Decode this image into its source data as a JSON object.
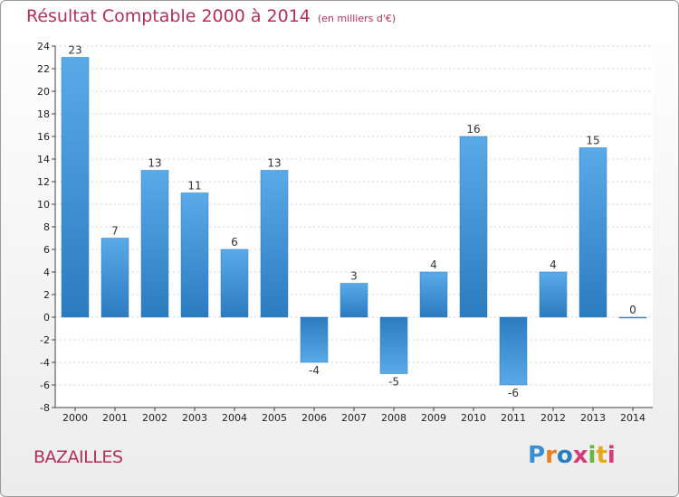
{
  "chart_data": {
    "type": "bar",
    "title": "Résultat Comptable 2000 à 2014",
    "unit": "(en milliers d'€)",
    "categories": [
      "2000",
      "2001",
      "2002",
      "2003",
      "2004",
      "2005",
      "2006",
      "2007",
      "2008",
      "2009",
      "2010",
      "2011",
      "2012",
      "2013",
      "2014"
    ],
    "values": [
      23,
      7,
      13,
      11,
      6,
      13,
      -4,
      3,
      -5,
      4,
      16,
      -6,
      4,
      15,
      0
    ],
    "ylim": [
      -8,
      24
    ],
    "yticks": [
      24,
      22,
      20,
      18,
      16,
      14,
      12,
      10,
      8,
      6,
      4,
      2,
      0,
      -2,
      -4,
      -6,
      -8
    ],
    "xlabel": "",
    "ylabel": "",
    "grid": true,
    "bar_color_light": "#5aaae8",
    "bar_color_dark": "#2a7cc0"
  },
  "footer": {
    "commune": "BAZAILLES"
  },
  "logo": {
    "letters": [
      "P",
      "r",
      "o",
      "x",
      "i",
      "t",
      "i"
    ],
    "colors": [
      "#3a8fd4",
      "#e67e22",
      "#2a7cc0",
      "#d63c7a",
      "#6cb33f",
      "#e6a817",
      "#d63c7a"
    ]
  }
}
